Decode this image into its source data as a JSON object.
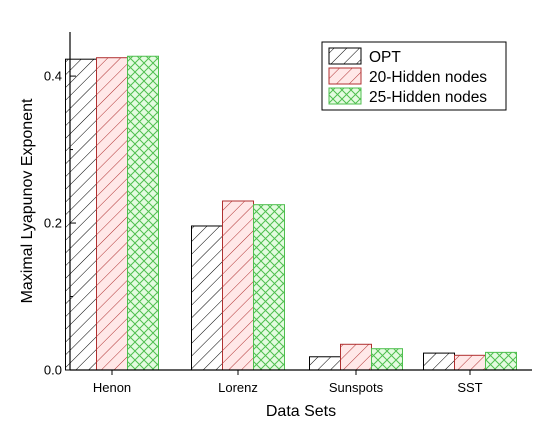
{
  "chart_data": {
    "type": "bar",
    "title": "",
    "xlabel": "Data Sets",
    "ylabel": "Maximal Lyapunov Exponent",
    "categories": [
      "Henon",
      "Lorenz",
      "Sunspots",
      "SST"
    ],
    "series": [
      {
        "name": "OPT",
        "values": [
          0.423,
          0.196,
          0.018,
          0.023
        ],
        "color": "#ffffff",
        "hatch": "diagonal-down",
        "hatch_color": "#000000"
      },
      {
        "name": "20-Hidden nodes",
        "values": [
          0.425,
          0.23,
          0.035,
          0.02
        ],
        "color": "#ffe8e8",
        "hatch": "diagonal-down",
        "hatch_color": "#b03030"
      },
      {
        "name": "25-Hidden nodes",
        "values": [
          0.427,
          0.225,
          0.029,
          0.024
        ],
        "color": "#e4fbe0",
        "hatch": "crosshatch",
        "hatch_color": "#4fbf4f"
      }
    ],
    "ylim": [
      0.0,
      0.46
    ],
    "yticks": [
      {
        "value": 0.0,
        "label": "0.0"
      },
      {
        "value": 0.2,
        "label": "0.2"
      },
      {
        "value": 0.4,
        "label": "0.4"
      }
    ],
    "grid": false,
    "legend_position": "top-right"
  }
}
